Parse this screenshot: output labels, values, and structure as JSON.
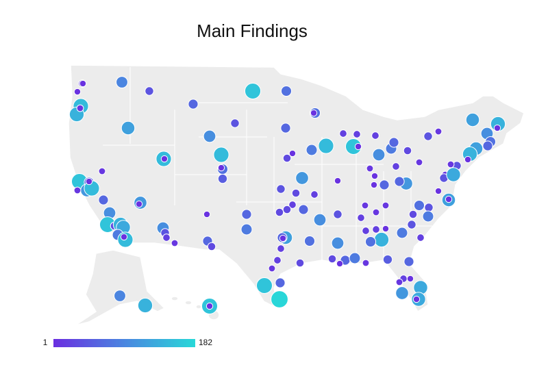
{
  "title": "Main Findings",
  "legend": {
    "min": 1,
    "max": 182,
    "colors": [
      "#6a2ee0",
      "#4a86e0",
      "#28d8d8"
    ]
  },
  "markers": {
    "values": [
      20,
      150,
      140,
      10,
      5,
      5,
      90,
      40,
      60,
      120,
      160,
      70,
      40,
      100,
      150,
      70,
      50,
      5,
      150,
      5,
      70,
      5,
      60,
      5,
      30,
      80,
      150,
      20,
      20,
      160,
      5,
      20,
      100,
      80,
      60,
      30,
      10,
      5,
      5,
      60,
      20,
      110,
      60,
      10,
      40,
      10,
      120,
      140,
      5,
      100,
      70,
      60,
      120,
      140,
      5,
      40,
      10,
      10,
      40,
      130,
      120,
      5,
      5,
      70,
      40,
      80,
      30,
      40,
      80,
      20,
      10,
      10,
      10,
      20,
      20,
      20,
      140,
      70,
      5,
      40,
      100,
      100,
      60,
      20,
      20,
      30,
      40,
      110,
      5,
      120,
      60,
      5,
      30,
      30,
      70,
      30,
      60,
      80,
      10,
      50,
      60,
      5,
      20,
      10,
      5,
      130,
      110,
      130,
      5,
      20,
      20,
      10,
      30,
      160,
      60,
      180,
      60,
      80,
      5,
      60,
      30,
      100,
      40,
      20,
      10,
      110,
      5,
      10,
      160,
      60,
      110,
      150,
      5,
      10,
      60,
      100,
      160,
      30,
      140,
      130,
      80,
      150,
      5,
      90,
      140,
      160,
      5
    ]
  }
}
